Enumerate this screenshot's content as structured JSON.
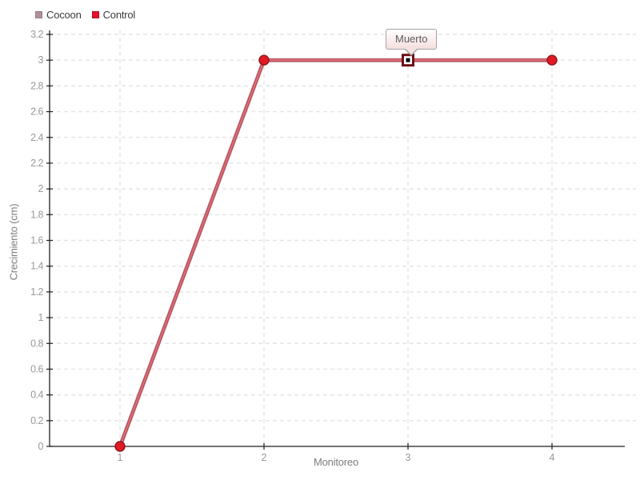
{
  "chart_data": {
    "type": "line",
    "x": [
      1,
      2,
      3,
      4
    ],
    "series": [
      {
        "name": "Cocoon",
        "color": "#b08f9a",
        "edge_color": "#9a7b85",
        "values": [
          0,
          3,
          3,
          3
        ]
      },
      {
        "name": "Control",
        "color": "#e8112d",
        "edge_color": "#b00d20",
        "values": [
          0,
          3,
          3,
          3
        ]
      }
    ],
    "annotations": [
      {
        "x": 3,
        "y": 3,
        "text": "Muerto",
        "marker": "dead-point"
      }
    ],
    "title": "",
    "xlabel": "Monitoreo",
    "ylabel": "Crecimiento (cm)",
    "ylim": [
      0,
      3.2
    ],
    "ytick_step": 0.2,
    "xticks": [
      "1",
      "2",
      "3",
      "4"
    ],
    "grid": true,
    "legend_position": "top-left",
    "colors": {
      "grid": "#e4e4e4",
      "axis": "#1f1f1f",
      "tick_label": "#999999",
      "axis_title": "#7e7e7e",
      "line_outer": "#bf4b57",
      "line_core": "#dd737c",
      "point_fill": "#e01a24",
      "point_stroke": "#8e1418",
      "dead_marker_stroke": "#6d1115",
      "dead_marker_center": "#0a0a0a",
      "tooltip_border": "#a3a3a3"
    }
  },
  "legend": {
    "items": [
      {
        "label": "Cocoon"
      },
      {
        "label": "Control"
      }
    ]
  },
  "tooltip": {
    "text": "Muerto"
  }
}
